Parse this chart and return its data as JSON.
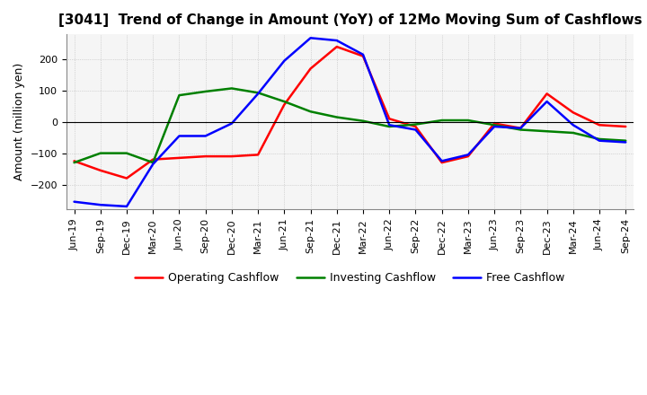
{
  "title": "[3041]  Trend of Change in Amount (YoY) of 12Mo Moving Sum of Cashflows",
  "ylabel": "Amount (million yen)",
  "x_labels": [
    "Jun-19",
    "Sep-19",
    "Dec-19",
    "Mar-20",
    "Jun-20",
    "Sep-20",
    "Dec-20",
    "Mar-21",
    "Jun-21",
    "Sep-21",
    "Dec-21",
    "Mar-22",
    "Jun-22",
    "Sep-22",
    "Dec-22",
    "Mar-23",
    "Jun-23",
    "Sep-23",
    "Dec-23",
    "Mar-24",
    "Jun-24",
    "Sep-24"
  ],
  "operating_cashflow": [
    -125,
    -155,
    -180,
    -120,
    -115,
    -110,
    -110,
    -105,
    55,
    170,
    240,
    210,
    10,
    -15,
    -130,
    -110,
    -5,
    -20,
    90,
    30,
    -10,
    -15
  ],
  "investing_cashflow": [
    -130,
    -100,
    -100,
    -130,
    85,
    97,
    107,
    93,
    65,
    33,
    15,
    3,
    -15,
    -8,
    5,
    5,
    -10,
    -25,
    -30,
    -35,
    -55,
    -60
  ],
  "free_cashflow": [
    -255,
    -265,
    -270,
    -135,
    -45,
    -45,
    -5,
    90,
    195,
    268,
    260,
    215,
    -10,
    -25,
    -125,
    -105,
    -15,
    -20,
    65,
    -10,
    -60,
    -65
  ],
  "operating_color": "#ff0000",
  "investing_color": "#008000",
  "free_color": "#0000ff",
  "ylim": [
    -280,
    280
  ],
  "yticks": [
    -200,
    -100,
    0,
    100,
    200
  ],
  "background_color": "#ffffff",
  "plot_background": "#f5f5f5",
  "grid_color": "#aaaaaa",
  "legend_labels": [
    "Operating Cashflow",
    "Investing Cashflow",
    "Free Cashflow"
  ],
  "title_fontsize": 11,
  "tick_fontsize": 8,
  "ylabel_fontsize": 9,
  "linewidth": 1.8
}
